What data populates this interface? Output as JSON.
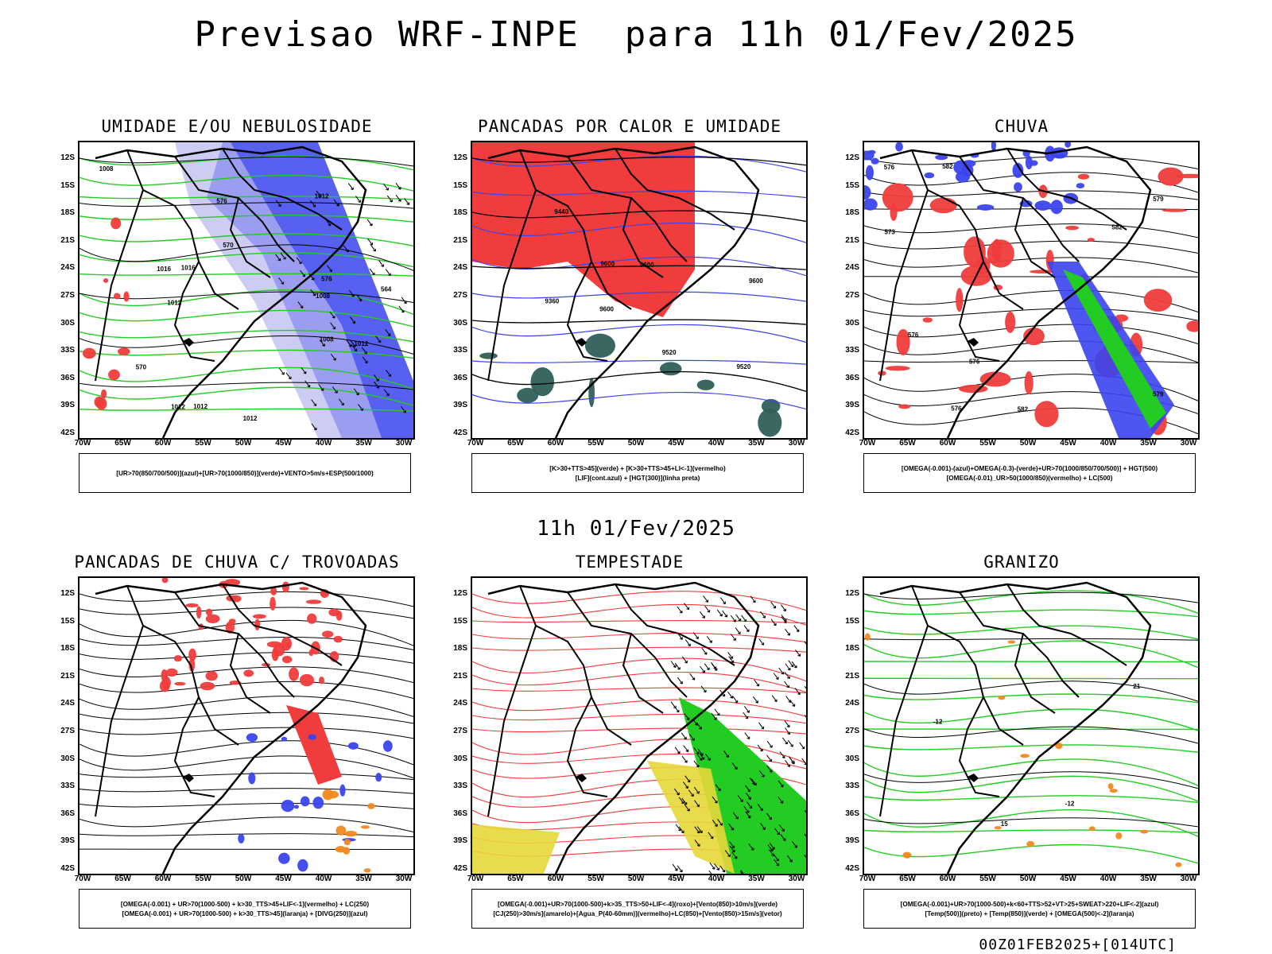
{
  "title": "Previsao WRF-INPE  para 11h 01/Fev/2025",
  "mid_title": "11h 01/Fev/2025",
  "footer": "00Z01FEB2025+[014UTC]",
  "axes": {
    "y_labels": [
      "12S",
      "15S",
      "18S",
      "21S",
      "24S",
      "27S",
      "30S",
      "33S",
      "36S",
      "39S",
      "42S"
    ],
    "x_labels": [
      "70W",
      "65W",
      "60W",
      "55W",
      "50W",
      "45W",
      "40W",
      "35W",
      "30W"
    ]
  },
  "colors": {
    "red": "#f03c3c",
    "blue": "#3a44ee",
    "green": "#22cc22",
    "dark_teal": "#2f5f5a",
    "yellow": "#e6d83a",
    "orange": "#f08a20",
    "lavender": "#b8b8f0"
  },
  "panels": [
    {
      "title": "UMIDADE E/OU NEBULOSIDADE",
      "legend": [
        "[UR>70(850/700/500)](azul)+[UR>70(1000/850)](verde)+VENTO>5m/s+ESP(500/1000)"
      ],
      "labels": [
        "1012",
        "1012",
        "1012",
        "1012",
        "1008",
        "1008",
        "1016",
        "1016",
        "1008",
        "1012",
        "1012",
        "576",
        "570",
        "564",
        "570",
        "576"
      ]
    },
    {
      "title": "PANCADAS POR CALOR E UMIDADE",
      "legend": [
        "[K>30+TTS>45](verde) + [K>30+TTS>45+LI<-1](vermelho)",
        "[LIF](cont.azul) + [HGT(300)](linha preta)"
      ],
      "labels": [
        "9600",
        "9600",
        "9600",
        "9520",
        "9600",
        "9520",
        "9440",
        "9360"
      ]
    },
    {
      "title": "CHUVA",
      "legend": [
        "[OMEGA(-0.001)-(azul)+OMEGA(-0.3)-(verde)+UR>70(1000/850/700/500)] + HGT(500)",
        "[OMEGA(-0.01)_UR>50(1000/850)(vermelho) + LC(500)"
      ],
      "labels": [
        "582",
        "582",
        "576",
        "576",
        "573",
        "579",
        "576",
        "576",
        "582",
        "579"
      ]
    },
    {
      "title": "PANCADAS DE CHUVA C/ TROVOADAS",
      "legend": [
        "[OMEGA(-0.001) + UR>70(1000-500) + k>30_TTS>45+LIF<-1](vermelho) + LC(250)",
        "[OMEGA(-0.001) + UR>70(1000-500) + k>30_TTS>45](laranja) + [DIVG(250)](azul)"
      ],
      "labels": []
    },
    {
      "title": "TEMPESTADE",
      "legend": [
        "[OMEGA(-0.001)+UR>70(1000-500)+k>35_TTS>50+LIF<-4](roxo)+[Vento(850)>10m/s](verde)",
        "[CJ(250)>30m/s](amarelo)+[Agua_P(40-60mm)](vermelho)+LC(850)+[Vento(850)>15m/s](vetor)"
      ],
      "labels": []
    },
    {
      "title": "GRANIZO",
      "legend": [
        "[OMEGA(-0.001)+UR>70(1000-500)+k<60+TTS>52+VT>25+SWEAT>220+LIF<-2](azul)",
        "[Temp(500)](preto) + [Temp(850)](verde) + [OMEGA(500)<-2](laranja)"
      ],
      "labels": [
        "-12",
        "-12",
        "21",
        "15"
      ]
    }
  ]
}
